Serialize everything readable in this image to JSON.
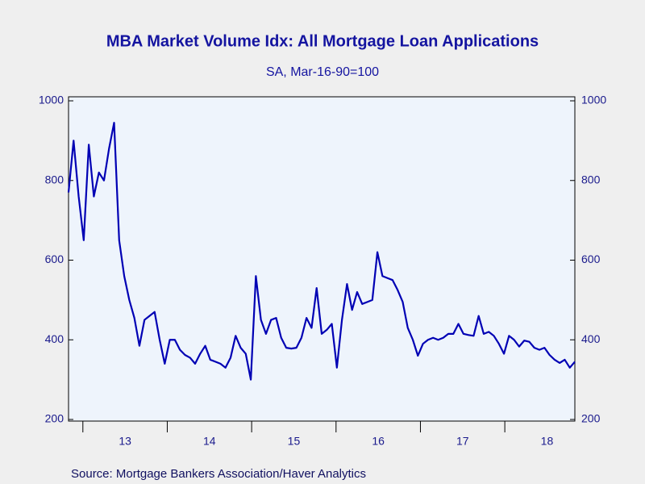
{
  "chart_data": {
    "type": "line",
    "title": "MBA Market Volume Idx: All Mortgage Loan Applications",
    "subtitle": "SA, Mar-16-90=100",
    "source": "Source:  Mortgage Bankers Association/Haver Analytics",
    "x": [
      2012.83,
      2012.89,
      2012.95,
      2013.01,
      2013.07,
      2013.13,
      2013.19,
      2013.25,
      2013.31,
      2013.37,
      2013.43,
      2013.49,
      2013.55,
      2013.61,
      2013.67,
      2013.73,
      2013.79,
      2013.85,
      2013.91,
      2013.97,
      2014.03,
      2014.09,
      2014.15,
      2014.21,
      2014.27,
      2014.33,
      2014.39,
      2014.45,
      2014.51,
      2014.57,
      2014.63,
      2014.69,
      2014.75,
      2014.81,
      2014.87,
      2014.93,
      2014.99,
      2015.05,
      2015.11,
      2015.17,
      2015.23,
      2015.29,
      2015.35,
      2015.41,
      2015.47,
      2015.53,
      2015.59,
      2015.65,
      2015.71,
      2015.77,
      2015.83,
      2015.89,
      2015.95,
      2016.01,
      2016.07,
      2016.13,
      2016.19,
      2016.25,
      2016.31,
      2016.37,
      2016.43,
      2016.49,
      2016.55,
      2016.61,
      2016.67,
      2016.73,
      2016.79,
      2016.85,
      2016.91,
      2016.97,
      2017.03,
      2017.09,
      2017.15,
      2017.21,
      2017.27,
      2017.33,
      2017.39,
      2017.45,
      2017.51,
      2017.57,
      2017.63,
      2017.69,
      2017.75,
      2017.81,
      2017.87,
      2017.93,
      2017.99,
      2018.05,
      2018.11,
      2018.17,
      2018.23,
      2018.29,
      2018.35,
      2018.41,
      2018.47,
      2018.53,
      2018.59,
      2018.65,
      2018.71,
      2018.77,
      2018.83
    ],
    "series": [
      {
        "name": "MBA Market Volume Idx",
        "color": "#0000b4",
        "values": [
          770,
          900,
          760,
          650,
          890,
          760,
          820,
          800,
          880,
          945,
          650,
          560,
          500,
          455,
          385,
          450,
          460,
          470,
          400,
          340,
          400,
          400,
          375,
          362,
          355,
          340,
          365,
          385,
          350,
          345,
          340,
          330,
          355,
          410,
          380,
          365,
          300,
          560,
          450,
          415,
          450,
          455,
          405,
          380,
          378,
          380,
          405,
          455,
          430,
          530,
          415,
          425,
          440,
          330,
          450,
          540,
          475,
          520,
          490,
          495,
          500,
          620,
          560,
          555,
          550,
          525,
          495,
          430,
          400,
          360,
          390,
          400,
          405,
          400,
          405,
          415,
          415,
          440,
          415,
          412,
          410,
          460,
          415,
          420,
          410,
          390,
          365,
          410,
          400,
          383,
          398,
          395,
          380,
          375,
          380,
          362,
          350,
          342,
          350,
          330,
          345
        ]
      }
    ],
    "xlim": [
      2012.83,
      2018.83
    ],
    "xticks": [
      {
        "value": 2013.5,
        "label": "13"
      },
      {
        "value": 2014.5,
        "label": "14"
      },
      {
        "value": 2015.5,
        "label": "15"
      },
      {
        "value": 2016.5,
        "label": "16"
      },
      {
        "value": 2017.5,
        "label": "17"
      },
      {
        "value": 2018.5,
        "label": "18"
      }
    ],
    "ylim": [
      200,
      1000
    ],
    "yticks": [
      200,
      400,
      600,
      800,
      1000
    ]
  }
}
